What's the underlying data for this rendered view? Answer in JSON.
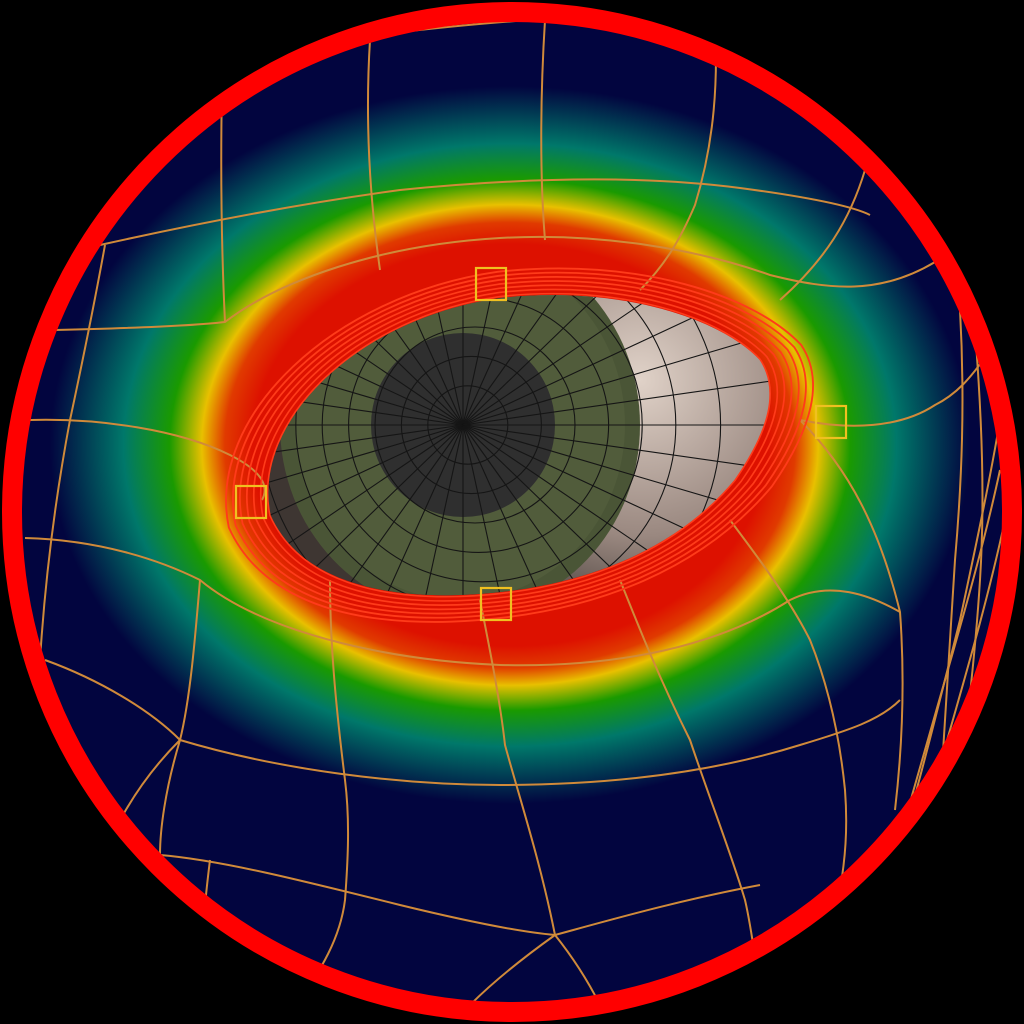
{
  "viewport": {
    "background": "#000000",
    "lens_ring_color": "#ff0000",
    "surface_base_color": "#02053f",
    "wire_color": "#d08a3a",
    "handle_color": "#f0c020"
  },
  "heatmap": {
    "colors": [
      "#dd1100",
      "#e03a00",
      "#e8c000",
      "#1a9a00",
      "#00786a",
      "#02053f"
    ]
  },
  "eyeball": {
    "sclera_color": "#a89488",
    "iris_color": "#4a5536",
    "pupil_color": "#2f2f2f",
    "mesh_line_color": "#151515"
  },
  "handles": [
    {
      "id": "top"
    },
    {
      "id": "right"
    },
    {
      "id": "left"
    },
    {
      "id": "bottom"
    }
  ]
}
